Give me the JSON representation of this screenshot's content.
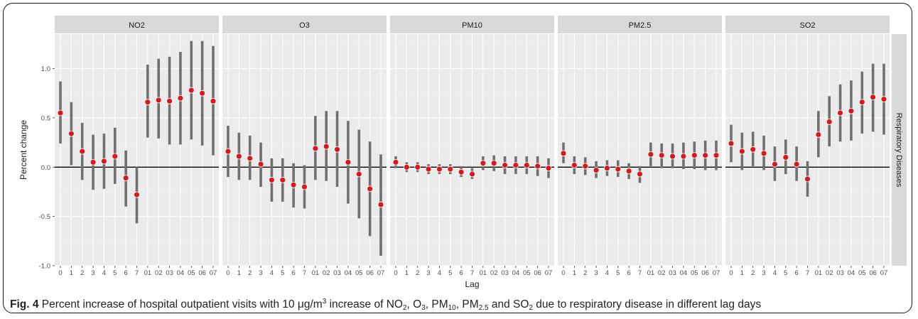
{
  "chart_data": {
    "type": "scatter",
    "ylabel": "Percent change",
    "xlabel": "Lag",
    "strip_label": "Respiratory Diseases",
    "ylim": [
      -1.0,
      1.35
    ],
    "yticks": [
      -1.0,
      -0.5,
      0.0,
      0.5,
      1.0
    ],
    "ytick_labels": [
      "-1.0",
      "-0.5",
      "0.0",
      "0.5",
      "1.0"
    ],
    "reference_line": 0.0,
    "categories": [
      "0",
      "1",
      "2",
      "3",
      "4",
      "5",
      "6",
      "7",
      "01",
      "02",
      "03",
      "04",
      "05",
      "06",
      "07"
    ],
    "point_color": "#d7191c",
    "interval_color": "#707070",
    "panels": [
      {
        "name": "NO2",
        "estimate": [
          0.55,
          0.34,
          0.16,
          0.05,
          0.06,
          0.11,
          -0.11,
          -0.28,
          0.66,
          0.68,
          0.67,
          0.7,
          0.78,
          0.75,
          0.67
        ],
        "lower": [
          0.24,
          0.02,
          -0.13,
          -0.23,
          -0.22,
          -0.17,
          -0.4,
          -0.57,
          0.3,
          0.29,
          0.23,
          0.23,
          0.28,
          0.22,
          0.12
        ],
        "upper": [
          0.87,
          0.66,
          0.45,
          0.33,
          0.34,
          0.4,
          0.17,
          0.0,
          1.04,
          1.1,
          1.12,
          1.17,
          1.28,
          1.28,
          1.23
        ]
      },
      {
        "name": "O3",
        "estimate": [
          0.16,
          0.11,
          0.09,
          0.03,
          -0.13,
          -0.13,
          -0.18,
          -0.2,
          0.19,
          0.21,
          0.18,
          0.05,
          -0.07,
          -0.22,
          -0.38
        ],
        "lower": [
          -0.1,
          -0.13,
          -0.13,
          -0.2,
          -0.35,
          -0.35,
          -0.41,
          -0.42,
          -0.13,
          -0.14,
          -0.2,
          -0.37,
          -0.52,
          -0.7,
          -0.9
        ],
        "upper": [
          0.42,
          0.35,
          0.32,
          0.25,
          0.09,
          0.09,
          0.04,
          0.02,
          0.52,
          0.57,
          0.57,
          0.47,
          0.38,
          0.26,
          0.13
        ]
      },
      {
        "name": "PM10",
        "estimate": [
          0.05,
          0.0,
          0.0,
          -0.02,
          -0.02,
          -0.02,
          -0.05,
          -0.07,
          0.04,
          0.04,
          0.02,
          0.02,
          0.02,
          0.01,
          -0.01
        ],
        "lower": [
          -0.01,
          -0.05,
          -0.05,
          -0.07,
          -0.07,
          -0.07,
          -0.1,
          -0.12,
          -0.03,
          -0.04,
          -0.07,
          -0.07,
          -0.07,
          -0.09,
          -0.11
        ],
        "upper": [
          0.11,
          0.05,
          0.05,
          0.03,
          0.03,
          0.03,
          0.01,
          -0.01,
          0.11,
          0.12,
          0.11,
          0.11,
          0.11,
          0.11,
          0.09
        ]
      },
      {
        "name": "PM2.5",
        "estimate": [
          0.14,
          0.02,
          0.01,
          -0.03,
          -0.01,
          -0.02,
          -0.04,
          -0.07,
          0.13,
          0.12,
          0.11,
          0.11,
          0.12,
          0.12,
          0.12
        ],
        "lower": [
          0.04,
          -0.07,
          -0.08,
          -0.11,
          -0.09,
          -0.1,
          -0.12,
          -0.16,
          0.01,
          -0.01,
          -0.01,
          -0.02,
          -0.02,
          -0.03,
          -0.03
        ],
        "upper": [
          0.25,
          0.11,
          0.1,
          0.06,
          0.07,
          0.07,
          0.04,
          0.01,
          0.25,
          0.24,
          0.24,
          0.25,
          0.26,
          0.27,
          0.27
        ]
      },
      {
        "name": "SO2",
        "estimate": [
          0.24,
          0.16,
          0.18,
          0.14,
          0.03,
          0.1,
          0.03,
          -0.12,
          0.33,
          0.46,
          0.55,
          0.57,
          0.66,
          0.71,
          0.69
        ],
        "lower": [
          0.05,
          -0.03,
          0.01,
          -0.03,
          -0.14,
          -0.07,
          -0.14,
          -0.3,
          0.1,
          0.21,
          0.26,
          0.27,
          0.34,
          0.36,
          0.33
        ],
        "upper": [
          0.43,
          0.35,
          0.36,
          0.32,
          0.21,
          0.28,
          0.21,
          0.06,
          0.57,
          0.72,
          0.84,
          0.88,
          0.97,
          1.05,
          1.05
        ]
      }
    ]
  },
  "caption": {
    "fig_label": "Fig. 4",
    "text_a": " Percent increase of hospital outpatient visits with 10 μg/m",
    "sup_3": "3",
    "text_b": " increase of NO",
    "sub_no2": "2",
    "text_c": ", O",
    "sub_o3": "3",
    "text_d": ", PM",
    "sub_pm10": "10",
    "text_e": ", PM",
    "sub_pm25": "2.5",
    "text_f": " and SO",
    "sub_so2": "2",
    "text_g": " due to respiratory disease in different lag days"
  }
}
